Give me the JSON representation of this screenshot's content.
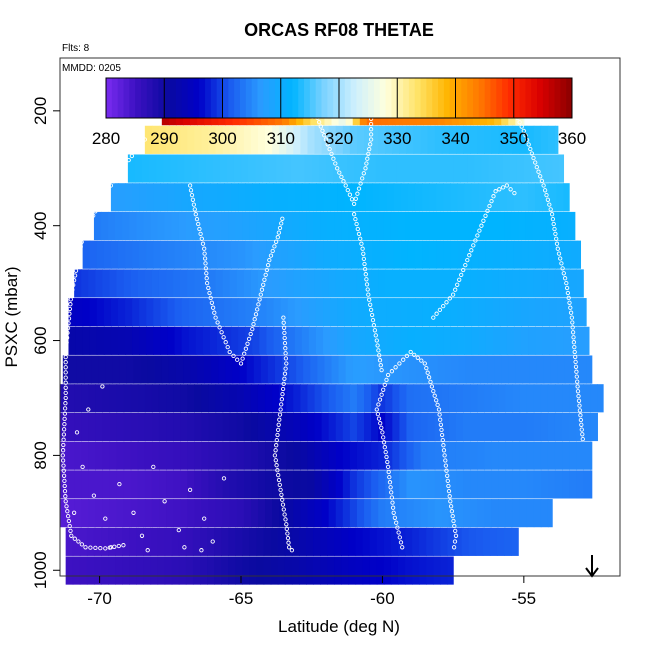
{
  "chart_data": {
    "type": "heatmap",
    "title": "ORCAS RF08 THETAE",
    "flights_note": "Flts: 8",
    "date_note": "MMDD: 0205",
    "xlabel": "Latitude (deg N)",
    "ylabel": "PSXC (mbar)",
    "xlim": [
      -71.4,
      -51.6
    ],
    "ylim": [
      1010,
      108
    ],
    "y_reversed": true,
    "x_ticks": [
      -70,
      -65,
      -60,
      -55
    ],
    "x_tick_labels": [
      "-70",
      "-65",
      "-60",
      "-55"
    ],
    "y_ticks": [
      200,
      400,
      600,
      800,
      1000
    ],
    "y_tick_labels": [
      "200",
      "400",
      "600",
      "800",
      "1000"
    ],
    "colorbar": {
      "min": 280,
      "max": 360,
      "ticks": [
        280,
        290,
        300,
        310,
        320,
        330,
        340,
        350,
        360
      ],
      "tick_labels": [
        "280",
        "290",
        "300",
        "310",
        "320",
        "330",
        "340",
        "350",
        "360"
      ],
      "colors": [
        "#7a2cf0",
        "#3a10c0",
        "#0a0aa0",
        "#0000c8",
        "#1a5cf0",
        "#2a9cff",
        "#00b4ff",
        "#7ad2ff",
        "#cdeffd",
        "#ffffdd",
        "#ffe46a",
        "#ffb400",
        "#ff7a00",
        "#ff2a00",
        "#d80000",
        "#8a0000"
      ]
    },
    "pressure_levels": [
      200,
      250,
      300,
      350,
      400,
      450,
      500,
      550,
      600,
      650,
      700,
      750,
      800,
      850,
      900,
      950,
      1000
    ],
    "rows": [
      {
        "p": 200,
        "lat_min": -67.8,
        "lat_max": -55.0,
        "anchors": [
          [
            -67.8,
            357
          ],
          [
            -65.5,
            350
          ],
          [
            -63.5,
            344
          ],
          [
            -62.5,
            334
          ],
          [
            -61.3,
            325
          ],
          [
            -60.6,
            345
          ],
          [
            -58,
            343
          ],
          [
            -56,
            338
          ],
          [
            -55,
            327
          ]
        ]
      },
      {
        "p": 250,
        "lat_min": -68.4,
        "lat_max": -53.8,
        "anchors": [
          [
            -68.4,
            333
          ],
          [
            -66,
            331
          ],
          [
            -64,
            328
          ],
          [
            -62.5,
            320
          ],
          [
            -61,
            316
          ],
          [
            -58,
            314
          ],
          [
            -55,
            313
          ],
          [
            -53.8,
            314
          ]
        ]
      },
      {
        "p": 300,
        "lat_min": -69.0,
        "lat_max": -53.6,
        "anchors": [
          [
            -69,
            313
          ],
          [
            -66,
            314
          ],
          [
            -63,
            315
          ],
          [
            -60,
            314
          ],
          [
            -57,
            314
          ],
          [
            -53.6,
            315
          ]
        ]
      },
      {
        "p": 350,
        "lat_min": -69.6,
        "lat_max": -53.4,
        "anchors": [
          [
            -69.6,
            307
          ],
          [
            -67,
            309
          ],
          [
            -64,
            311
          ],
          [
            -61,
            312
          ],
          [
            -58,
            313
          ],
          [
            -55,
            314
          ],
          [
            -53.4,
            313
          ]
        ]
      },
      {
        "p": 400,
        "lat_min": -70.2,
        "lat_max": -53.2,
        "anchors": [
          [
            -70.2,
            304
          ],
          [
            -68,
            306
          ],
          [
            -65,
            308
          ],
          [
            -62,
            311
          ],
          [
            -59,
            312
          ],
          [
            -56,
            312
          ],
          [
            -53.2,
            311
          ]
        ]
      },
      {
        "p": 450,
        "lat_min": -70.6,
        "lat_max": -53.0,
        "anchors": [
          [
            -70.6,
            302
          ],
          [
            -68,
            304
          ],
          [
            -65,
            306
          ],
          [
            -62,
            310
          ],
          [
            -59,
            312
          ],
          [
            -56,
            311
          ],
          [
            -53,
            310
          ]
        ]
      },
      {
        "p": 500,
        "lat_min": -70.9,
        "lat_max": -52.9,
        "anchors": [
          [
            -70.9,
            299
          ],
          [
            -68.5,
            302
          ],
          [
            -66,
            304
          ],
          [
            -63,
            308
          ],
          [
            -60,
            311
          ],
          [
            -57,
            311
          ],
          [
            -55,
            310
          ],
          [
            -52.9,
            309
          ]
        ]
      },
      {
        "p": 550,
        "lat_min": -71.1,
        "lat_max": -52.8,
        "anchors": [
          [
            -71.1,
            295
          ],
          [
            -69,
            298
          ],
          [
            -67,
            302
          ],
          [
            -64,
            305
          ],
          [
            -61,
            310
          ],
          [
            -58,
            311
          ],
          [
            -55,
            309
          ],
          [
            -52.8,
            308
          ]
        ]
      },
      {
        "p": 600,
        "lat_min": -71.1,
        "lat_max": -52.7,
        "anchors": [
          [
            -71.1,
            292
          ],
          [
            -69,
            293
          ],
          [
            -67,
            297
          ],
          [
            -64.5,
            300
          ],
          [
            -63,
            304
          ],
          [
            -61,
            309
          ],
          [
            -59,
            311
          ],
          [
            -57,
            310
          ],
          [
            -55,
            308
          ],
          [
            -52.7,
            307
          ]
        ]
      },
      {
        "p": 650,
        "lat_min": -71.3,
        "lat_max": -52.6,
        "anchors": [
          [
            -71.3,
            290
          ],
          [
            -69,
            290
          ],
          [
            -67,
            292
          ],
          [
            -65,
            296
          ],
          [
            -63,
            301
          ],
          [
            -61,
            307
          ],
          [
            -59.5,
            306
          ],
          [
            -57,
            305
          ],
          [
            -55,
            305
          ],
          [
            -52.6,
            305
          ]
        ]
      },
      {
        "p": 700,
        "lat_min": -71.4,
        "lat_max": -52.2,
        "anchors": [
          [
            -71.4,
            288
          ],
          [
            -69,
            289
          ],
          [
            -67,
            290
          ],
          [
            -65,
            293
          ],
          [
            -63,
            298
          ],
          [
            -61,
            304
          ],
          [
            -60,
            299
          ],
          [
            -59,
            303
          ],
          [
            -57,
            304
          ],
          [
            -55,
            305
          ],
          [
            -52.2,
            305
          ]
        ]
      },
      {
        "p": 750,
        "lat_min": -71.4,
        "lat_max": -52.4,
        "anchors": [
          [
            -71.4,
            286
          ],
          [
            -69,
            287
          ],
          [
            -67,
            288
          ],
          [
            -65,
            290
          ],
          [
            -63,
            294
          ],
          [
            -61,
            300
          ],
          [
            -60,
            296
          ],
          [
            -59,
            302
          ],
          [
            -57,
            304
          ],
          [
            -55,
            304
          ],
          [
            -52.4,
            305
          ]
        ]
      },
      {
        "p": 800,
        "lat_min": -71.4,
        "lat_max": -52.6,
        "anchors": [
          [
            -71.4,
            284
          ],
          [
            -69,
            285
          ],
          [
            -67,
            286
          ],
          [
            -65,
            288
          ],
          [
            -63,
            291
          ],
          [
            -61.5,
            296
          ],
          [
            -60,
            298
          ],
          [
            -58.5,
            304
          ],
          [
            -56,
            305
          ],
          [
            -52.6,
            305
          ]
        ]
      },
      {
        "p": 850,
        "lat_min": -71.4,
        "lat_max": -52.6,
        "anchors": [
          [
            -71.4,
            284
          ],
          [
            -69,
            284
          ],
          [
            -67,
            285
          ],
          [
            -65.5,
            288
          ],
          [
            -64,
            290
          ],
          [
            -62.5,
            291
          ],
          [
            -61,
            299
          ],
          [
            -59,
            306
          ],
          [
            -57,
            305
          ],
          [
            -55,
            305
          ],
          [
            -52.6,
            304
          ]
        ]
      },
      {
        "p": 900,
        "lat_min": -71.4,
        "lat_max": -54.0,
        "anchors": [
          [
            -71.4,
            283
          ],
          [
            -69,
            284
          ],
          [
            -67,
            285
          ],
          [
            -65,
            287
          ],
          [
            -63.5,
            291
          ],
          [
            -62,
            296
          ],
          [
            -60,
            304
          ],
          [
            -58,
            306
          ],
          [
            -56,
            305
          ],
          [
            -54,
            305
          ]
        ]
      },
      {
        "p": 950,
        "lat_min": -71.2,
        "lat_max": -55.2,
        "anchors": [
          [
            -71.2,
            284
          ],
          [
            -69,
            285
          ],
          [
            -67,
            286
          ],
          [
            -65,
            289
          ],
          [
            -63,
            292
          ],
          [
            -61,
            296
          ],
          [
            -59,
            298
          ],
          [
            -57,
            301
          ],
          [
            -55.2,
            302
          ]
        ]
      },
      {
        "p": 1000,
        "lat_min": -71.2,
        "lat_max": -57.5,
        "anchors": [
          [
            -71.2,
            285
          ],
          [
            -69,
            286
          ],
          [
            -67,
            287
          ],
          [
            -65,
            290
          ],
          [
            -63,
            292
          ],
          [
            -61,
            295
          ],
          [
            -59,
            297
          ],
          [
            -57.5,
            298
          ]
        ]
      }
    ]
  }
}
